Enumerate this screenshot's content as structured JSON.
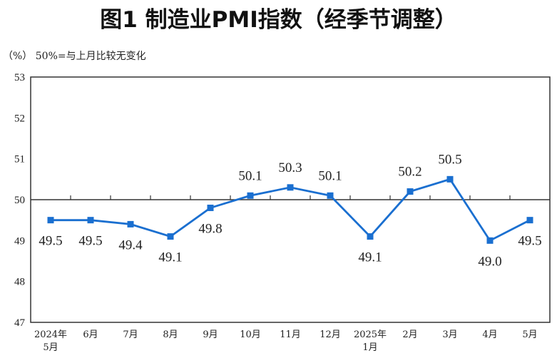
{
  "chart_data": {
    "type": "line",
    "title": "图1  制造业PMI指数（经季节调整）",
    "note": "（%）  50%=与上月比较无变化",
    "categories": [
      [
        "2024年",
        "5月"
      ],
      [
        "6月"
      ],
      [
        "7月"
      ],
      [
        "8月"
      ],
      [
        "9月"
      ],
      [
        "10月"
      ],
      [
        "11月"
      ],
      [
        "12月"
      ],
      [
        "2025年",
        "1月"
      ],
      [
        "2月"
      ],
      [
        "3月"
      ],
      [
        "4月"
      ],
      [
        "5月"
      ]
    ],
    "values": [
      49.5,
      49.5,
      49.4,
      49.1,
      49.8,
      50.1,
      50.3,
      50.1,
      49.1,
      50.2,
      50.5,
      49.0,
      49.5
    ],
    "value_labels": [
      "49.5",
      "49.5",
      "49.4",
      "49.1",
      "49.8",
      "50.1",
      "50.3",
      "50.1",
      "49.1",
      "50.2",
      "50.5",
      "49.0",
      "49.5"
    ],
    "ylim": [
      47,
      53
    ],
    "yticks": [
      "47",
      "48",
      "49",
      "50",
      "51",
      "52",
      "53"
    ],
    "reference_line": 50,
    "grid": false,
    "line_color": "#1a6fd0",
    "marker": "square"
  }
}
